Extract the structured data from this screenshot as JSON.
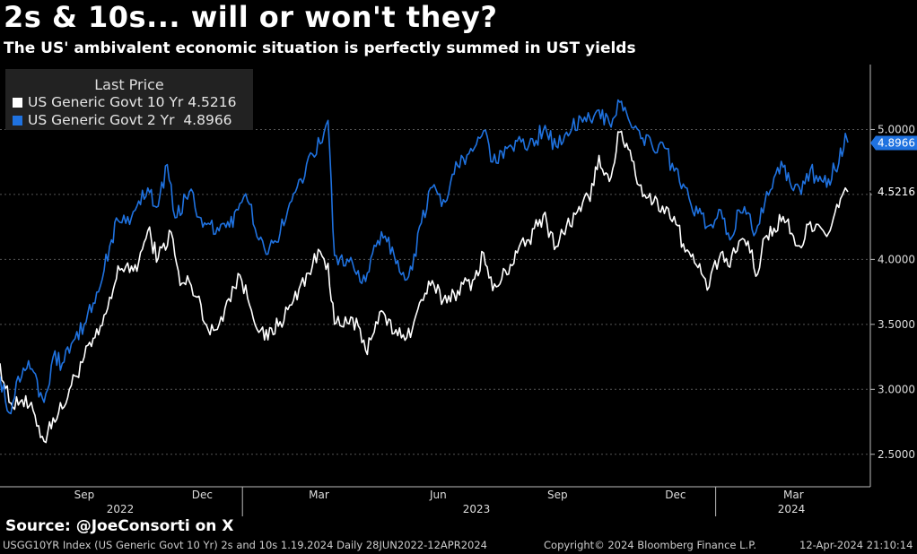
{
  "title": "2s & 10s... will or won't they?",
  "subtitle": "The US' ambivalent economic situation is perfectly summed in UST yields",
  "legend": {
    "header": "Last Price",
    "items": [
      {
        "label": "US Generic Govt 10 Yr",
        "value": "4.5216",
        "color": "#ffffff"
      },
      {
        "label": "US Generic Govt 2 Yr",
        "value": "4.8966",
        "color": "#1f72e0"
      }
    ]
  },
  "source": "Source: @JoeConsorti on X",
  "footer": {
    "left": "USGG10YR Index (US Generic Govt 10 Yr) 2s and 10s 1.19.2024  Daily 28JUN2022-12APR2024",
    "center": "Copyright© 2024 Bloomberg Finance L.P.",
    "right": "12-Apr-2024 21:10:14"
  },
  "colors": {
    "ten_year": "#ffffff",
    "two_year": "#1f72e0",
    "background": "#000000"
  },
  "chart_data": {
    "type": "line",
    "date_range": [
      "2022-06-28",
      "2024-04-12"
    ],
    "ylim": [
      2.25,
      5.5
    ],
    "yticks": [
      "2.5000",
      "3.0000",
      "3.5000",
      "4.0000",
      "4.5000",
      "5.0000"
    ],
    "month_ticks": [
      "Sep",
      "Dec",
      "Mar",
      "Jun",
      "Sep",
      "Dec",
      "Mar"
    ],
    "year_labels": [
      "2022",
      "2023",
      "2024"
    ],
    "grid": true,
    "legend_position": "top-left",
    "last_values": {
      "ten_year": "4.5216",
      "two_year": "4.8966"
    },
    "series": [
      {
        "name": "US Generic Govt 10 Yr",
        "key": "ten_year",
        "points": [
          [
            "2022-06-28",
            3.2
          ],
          [
            "2022-07-05",
            2.9
          ],
          [
            "2022-07-15",
            2.92
          ],
          [
            "2022-07-25",
            2.8
          ],
          [
            "2022-08-01",
            2.6
          ],
          [
            "2022-08-08",
            2.78
          ],
          [
            "2022-08-15",
            2.85
          ],
          [
            "2022-08-22",
            3.03
          ],
          [
            "2022-09-01",
            3.25
          ],
          [
            "2022-09-12",
            3.42
          ],
          [
            "2022-09-22",
            3.7
          ],
          [
            "2022-09-27",
            3.95
          ],
          [
            "2022-10-06",
            3.9
          ],
          [
            "2022-10-13",
            3.98
          ],
          [
            "2022-10-20",
            4.22
          ],
          [
            "2022-10-28",
            4.01
          ],
          [
            "2022-11-07",
            4.21
          ],
          [
            "2022-11-14",
            3.8
          ],
          [
            "2022-11-21",
            3.83
          ],
          [
            "2022-11-30",
            3.65
          ],
          [
            "2022-12-07",
            3.42
          ],
          [
            "2022-12-14",
            3.5
          ],
          [
            "2022-12-20",
            3.68
          ],
          [
            "2022-12-30",
            3.88
          ],
          [
            "2023-01-05",
            3.7
          ],
          [
            "2023-01-18",
            3.38
          ],
          [
            "2023-01-30",
            3.52
          ],
          [
            "2023-02-08",
            3.65
          ],
          [
            "2023-02-15",
            3.81
          ],
          [
            "2023-02-24",
            3.95
          ],
          [
            "2023-03-02",
            4.06
          ],
          [
            "2023-03-08",
            3.97
          ],
          [
            "2023-03-13",
            3.5
          ],
          [
            "2023-03-20",
            3.48
          ],
          [
            "2023-03-27",
            3.55
          ],
          [
            "2023-04-06",
            3.3
          ],
          [
            "2023-04-14",
            3.52
          ],
          [
            "2023-04-21",
            3.57
          ],
          [
            "2023-04-28",
            3.43
          ],
          [
            "2023-05-05",
            3.42
          ],
          [
            "2023-05-12",
            3.46
          ],
          [
            "2023-05-19",
            3.69
          ],
          [
            "2023-05-26",
            3.8
          ],
          [
            "2023-06-05",
            3.69
          ],
          [
            "2023-06-16",
            3.76
          ],
          [
            "2023-06-29",
            3.85
          ],
          [
            "2023-07-06",
            4.05
          ],
          [
            "2023-07-13",
            3.76
          ],
          [
            "2023-07-20",
            3.85
          ],
          [
            "2023-08-01",
            4.05
          ],
          [
            "2023-08-10",
            4.15
          ],
          [
            "2023-08-21",
            4.34
          ],
          [
            "2023-08-31",
            4.1
          ],
          [
            "2023-09-08",
            4.26
          ],
          [
            "2023-09-19",
            4.37
          ],
          [
            "2023-09-29",
            4.57
          ],
          [
            "2023-10-03",
            4.8
          ],
          [
            "2023-10-11",
            4.6
          ],
          [
            "2023-10-19",
            4.98
          ],
          [
            "2023-10-27",
            4.84
          ],
          [
            "2023-11-03",
            4.57
          ],
          [
            "2023-11-14",
            4.44
          ],
          [
            "2023-11-21",
            4.41
          ],
          [
            "2023-11-30",
            4.33
          ],
          [
            "2023-12-07",
            4.12
          ],
          [
            "2023-12-13",
            4.02
          ],
          [
            "2023-12-21",
            3.89
          ],
          [
            "2023-12-27",
            3.79
          ],
          [
            "2024-01-05",
            4.05
          ],
          [
            "2024-01-12",
            3.94
          ],
          [
            "2024-01-19",
            4.14
          ],
          [
            "2024-01-26",
            4.14
          ],
          [
            "2024-02-01",
            3.87
          ],
          [
            "2024-02-08",
            4.17
          ],
          [
            "2024-02-15",
            4.24
          ],
          [
            "2024-02-22",
            4.33
          ],
          [
            "2024-03-01",
            4.18
          ],
          [
            "2024-03-07",
            4.09
          ],
          [
            "2024-03-14",
            4.29
          ],
          [
            "2024-03-20",
            4.27
          ],
          [
            "2024-03-28",
            4.2
          ],
          [
            "2024-04-02",
            4.36
          ],
          [
            "2024-04-05",
            4.4
          ],
          [
            "2024-04-10",
            4.55
          ],
          [
            "2024-04-12",
            4.52
          ]
        ]
      },
      {
        "name": "US Generic Govt 2 Yr",
        "key": "two_year",
        "points": [
          [
            "2022-06-28",
            3.1
          ],
          [
            "2022-07-05",
            2.82
          ],
          [
            "2022-07-12",
            3.1
          ],
          [
            "2022-07-20",
            3.22
          ],
          [
            "2022-08-01",
            2.9
          ],
          [
            "2022-08-08",
            3.25
          ],
          [
            "2022-08-15",
            3.2
          ],
          [
            "2022-08-22",
            3.35
          ],
          [
            "2022-09-01",
            3.5
          ],
          [
            "2022-09-12",
            3.75
          ],
          [
            "2022-09-22",
            4.15
          ],
          [
            "2022-09-27",
            4.3
          ],
          [
            "2022-10-06",
            4.27
          ],
          [
            "2022-10-13",
            4.45
          ],
          [
            "2022-10-20",
            4.55
          ],
          [
            "2022-10-28",
            4.41
          ],
          [
            "2022-11-04",
            4.73
          ],
          [
            "2022-11-10",
            4.32
          ],
          [
            "2022-11-21",
            4.52
          ],
          [
            "2022-11-30",
            4.32
          ],
          [
            "2022-12-07",
            4.27
          ],
          [
            "2022-12-14",
            4.22
          ],
          [
            "2022-12-22",
            4.25
          ],
          [
            "2022-12-30",
            4.43
          ],
          [
            "2023-01-05",
            4.45
          ],
          [
            "2023-01-18",
            4.08
          ],
          [
            "2023-01-30",
            4.2
          ],
          [
            "2023-02-08",
            4.45
          ],
          [
            "2023-02-15",
            4.62
          ],
          [
            "2023-02-24",
            4.81
          ],
          [
            "2023-03-02",
            4.89
          ],
          [
            "2023-03-08",
            5.07
          ],
          [
            "2023-03-13",
            4.03
          ],
          [
            "2023-03-20",
            3.95
          ],
          [
            "2023-03-27",
            3.97
          ],
          [
            "2023-04-06",
            3.83
          ],
          [
            "2023-04-14",
            4.1
          ],
          [
            "2023-04-21",
            4.18
          ],
          [
            "2023-04-28",
            4.03
          ],
          [
            "2023-05-05",
            3.9
          ],
          [
            "2023-05-12",
            3.92
          ],
          [
            "2023-05-19",
            4.28
          ],
          [
            "2023-05-26",
            4.55
          ],
          [
            "2023-06-05",
            4.46
          ],
          [
            "2023-06-16",
            4.72
          ],
          [
            "2023-06-29",
            4.86
          ],
          [
            "2023-07-06",
            4.99
          ],
          [
            "2023-07-13",
            4.75
          ],
          [
            "2023-07-20",
            4.83
          ],
          [
            "2023-08-01",
            4.91
          ],
          [
            "2023-08-10",
            4.88
          ],
          [
            "2023-08-21",
            4.99
          ],
          [
            "2023-08-31",
            4.87
          ],
          [
            "2023-09-08",
            4.98
          ],
          [
            "2023-09-19",
            5.09
          ],
          [
            "2023-09-29",
            5.1
          ],
          [
            "2023-10-03",
            5.15
          ],
          [
            "2023-10-11",
            5.05
          ],
          [
            "2023-10-19",
            5.21
          ],
          [
            "2023-10-27",
            5.05
          ],
          [
            "2023-11-03",
            4.99
          ],
          [
            "2023-11-14",
            4.84
          ],
          [
            "2023-11-21",
            4.9
          ],
          [
            "2023-11-30",
            4.68
          ],
          [
            "2023-12-07",
            4.58
          ],
          [
            "2023-12-13",
            4.42
          ],
          [
            "2023-12-21",
            4.35
          ],
          [
            "2023-12-27",
            4.26
          ],
          [
            "2024-01-05",
            4.38
          ],
          [
            "2024-01-12",
            4.15
          ],
          [
            "2024-01-19",
            4.38
          ],
          [
            "2024-01-26",
            4.36
          ],
          [
            "2024-02-01",
            4.21
          ],
          [
            "2024-02-08",
            4.44
          ],
          [
            "2024-02-15",
            4.63
          ],
          [
            "2024-02-22",
            4.71
          ],
          [
            "2024-03-01",
            4.53
          ],
          [
            "2024-03-07",
            4.5
          ],
          [
            "2024-03-14",
            4.69
          ],
          [
            "2024-03-20",
            4.6
          ],
          [
            "2024-03-28",
            4.62
          ],
          [
            "2024-04-02",
            4.69
          ],
          [
            "2024-04-05",
            4.74
          ],
          [
            "2024-04-10",
            4.97
          ],
          [
            "2024-04-12",
            4.9
          ]
        ]
      }
    ]
  }
}
